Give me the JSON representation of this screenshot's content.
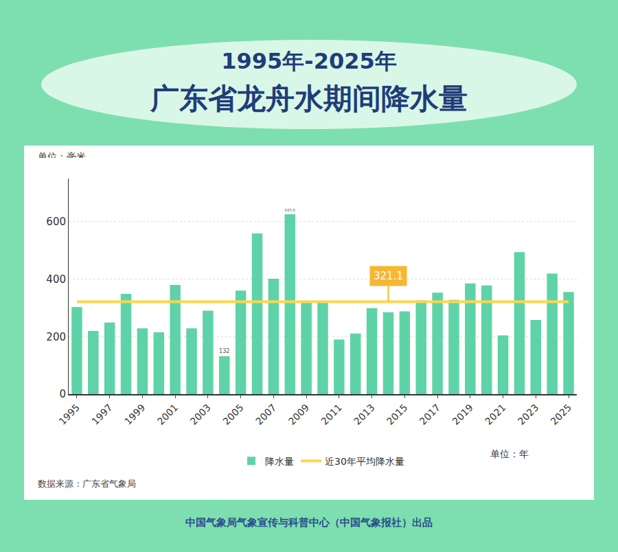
{
  "chart_data": {
    "type": "bar",
    "title": "1995年-2025年",
    "subtitle": "广东省龙舟水期间降水量",
    "y_label": "单位：毫米",
    "x_label": "单位：年",
    "source": "数据来源：广东省气象局",
    "footer": "中国气象局气象宣传与科普中心（中国气象报社）出品",
    "categories": [
      "1995",
      null,
      "1997",
      null,
      "1999",
      null,
      "2001",
      null,
      "2003",
      null,
      "2005",
      null,
      "2007",
      null,
      "2009",
      null,
      "2011",
      null,
      "2013",
      null,
      "2015",
      null,
      "2017",
      null,
      "2019",
      null,
      "2021",
      null,
      "2023",
      null,
      "2025"
    ],
    "series": [
      {
        "name": "降水量",
        "type": "bar",
        "color": "#5fd3a8",
        "values": [
          303,
          220,
          249,
          349,
          229,
          215,
          380,
          229,
          290,
          132,
          360,
          559,
          401,
          625.6,
          319,
          319,
          190,
          211,
          299,
          285,
          288,
          326,
          353,
          328,
          385,
          378,
          204,
          494,
          258,
          419,
          355
        ],
        "value_labels": [
          null,
          null,
          null,
          null,
          null,
          null,
          null,
          null,
          null,
          "132",
          null,
          null,
          null,
          "625.6",
          null,
          null,
          null,
          null,
          null,
          null,
          null,
          null,
          null,
          null,
          null,
          null,
          null,
          null,
          null,
          null,
          null
        ]
      },
      {
        "name": "近30年平均降水量",
        "type": "line",
        "color": "#ffd54f",
        "values": [
          321.1,
          321.1,
          321.1,
          321.1,
          321.1,
          321.1,
          321.1,
          321.1,
          321.1,
          321.1,
          321.1,
          321.1,
          321.1,
          321.1,
          321.1,
          321.1,
          321.1,
          321.1,
          321.1,
          321.1,
          321.1,
          321.1,
          321.1,
          321.1,
          321.1,
          321.1,
          321.1,
          321.1,
          321.1,
          321.1,
          321.1
        ],
        "value_labels": [
          null,
          null,
          null,
          null,
          null,
          null,
          null,
          null,
          null,
          null,
          null,
          null,
          null,
          null,
          null,
          null,
          null,
          null,
          null,
          "321.1",
          null,
          null,
          null,
          null,
          null,
          null,
          null,
          null,
          null,
          null,
          null
        ]
      }
    ],
    "ylim": [
      0,
      750
    ],
    "yticks": [
      0,
      200,
      400,
      600
    ],
    "grid": true,
    "legend": "bottom",
    "data_labels": true
  }
}
